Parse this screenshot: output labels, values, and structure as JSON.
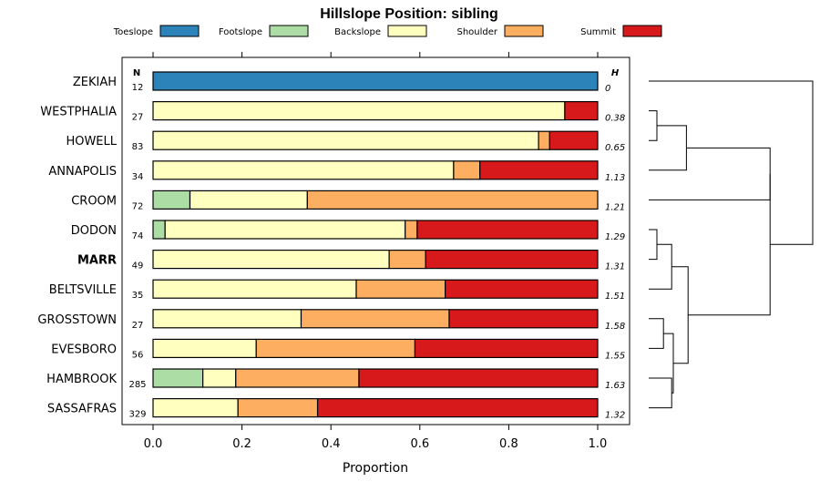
{
  "chart_data": {
    "type": "bar",
    "orientation": "horizontal-stacked",
    "title": "Hillslope Position: sibling",
    "xlabel": "Proportion",
    "xlim": [
      0,
      1
    ],
    "x_ticks": [
      "0.0",
      "0.2",
      "0.4",
      "0.6",
      "0.8",
      "1.0"
    ],
    "legend_position": "top",
    "n_header": "N",
    "h_header": "H",
    "series": [
      {
        "name": "Toeslope",
        "color": "#2b83ba"
      },
      {
        "name": "Footslope",
        "color": "#abdda4"
      },
      {
        "name": "Backslope",
        "color": "#ffffbf"
      },
      {
        "name": "Shoulder",
        "color": "#fdae61"
      },
      {
        "name": "Summit",
        "color": "#d7191c"
      }
    ],
    "categories": [
      {
        "label": "ZEKIAH",
        "n": "12",
        "h": "0",
        "highlight": false,
        "values": [
          1.0,
          0,
          0,
          0,
          0
        ]
      },
      {
        "label": "WESTPHALIA",
        "n": "27",
        "h": "0.38",
        "highlight": false,
        "values": [
          0,
          0,
          0.926,
          0,
          0.074
        ]
      },
      {
        "label": "HOWELL",
        "n": "83",
        "h": "0.65",
        "highlight": false,
        "values": [
          0,
          0,
          0.867,
          0.025,
          0.108
        ]
      },
      {
        "label": "ANNAPOLIS",
        "n": "34",
        "h": "1.13",
        "highlight": false,
        "values": [
          0,
          0,
          0.676,
          0.059,
          0.265
        ]
      },
      {
        "label": "CROOM",
        "n": "72",
        "h": "1.21",
        "highlight": false,
        "values": [
          0,
          0.083,
          0.264,
          0.653,
          0
        ]
      },
      {
        "label": "DODON",
        "n": "74",
        "h": "1.29",
        "highlight": false,
        "values": [
          0,
          0.027,
          0.54,
          0.027,
          0.406
        ]
      },
      {
        "label": "MARR",
        "n": "49",
        "h": "1.31",
        "highlight": true,
        "values": [
          0,
          0,
          0.531,
          0.082,
          0.387
        ]
      },
      {
        "label": "BELTSVILLE",
        "n": "35",
        "h": "1.51",
        "highlight": false,
        "values": [
          0,
          0,
          0.457,
          0.2,
          0.343
        ]
      },
      {
        "label": "GROSSTOWN",
        "n": "27",
        "h": "1.58",
        "highlight": false,
        "values": [
          0,
          0,
          0.333,
          0.333,
          0.334
        ]
      },
      {
        "label": "EVESBORO",
        "n": "56",
        "h": "1.55",
        "highlight": false,
        "values": [
          0,
          0,
          0.232,
          0.357,
          0.411
        ]
      },
      {
        "label": "HAMBROOK",
        "n": "285",
        "h": "1.63",
        "highlight": false,
        "values": [
          0,
          0.112,
          0.074,
          0.277,
          0.537
        ]
      },
      {
        "label": "SASSAFRAS",
        "n": "329",
        "h": "1.32",
        "highlight": false,
        "values": [
          0,
          0,
          0.191,
          0.179,
          0.63
        ]
      }
    ],
    "dendrogram": {
      "leaf_order": [
        "ZEKIAH",
        "WESTPHALIA",
        "HOWELL",
        "ANNAPOLIS",
        "CROOM",
        "DODON",
        "MARR",
        "BELTSVILLE",
        "GROSSTOWN",
        "EVESBORO",
        "HAMBROOK",
        "SASSAFRAS"
      ],
      "merges": [
        {
          "a": "WESTPHALIA",
          "b": "HOWELL",
          "height": 0.05
        },
        {
          "a": "DODON",
          "b": "MARR",
          "height": 0.05
        },
        {
          "a": "GROSSTOWN",
          "b": "EVESBORO",
          "height": 0.09
        },
        {
          "a": "HAMBROOK",
          "b": "SASSAFRAS",
          "height": 0.14
        },
        {
          "a": "c1",
          "b": "ANNAPOLIS",
          "height": 0.23
        },
        {
          "a": "c2",
          "b": "BELTSVILLE",
          "height": 0.14
        },
        {
          "a": "c3",
          "b": "c4",
          "height": 0.15
        },
        {
          "a": "c6",
          "b": "c7",
          "height": 0.24
        },
        {
          "a": "c5",
          "b": "CROOM",
          "height": 0.74
        },
        {
          "a": "c9",
          "b": "c8",
          "height": 0.74
        },
        {
          "a": "ZEKIAH",
          "b": "c10",
          "height": 1.0
        }
      ]
    }
  }
}
